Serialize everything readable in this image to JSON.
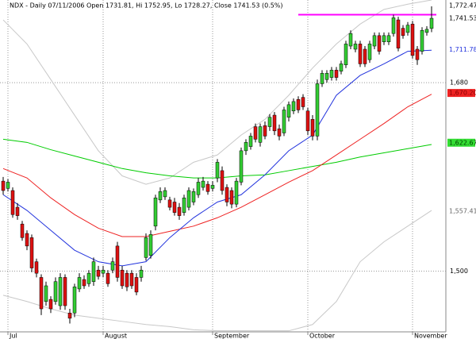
{
  "chart_data": {
    "type": "candlestick",
    "title": "NDX - Daily 07/11/2006 Open 1731.81, Hi 1752.95, Lo 1728.27, Close 1741.53 (0.5%)",
    "categories": [
      null,
      "Jul",
      null,
      null,
      null,
      null,
      null,
      null,
      null,
      null,
      null,
      null,
      null,
      null,
      null,
      null,
      null,
      null,
      null,
      null,
      null,
      "August",
      null,
      null,
      null,
      null,
      null,
      null,
      null,
      null,
      null,
      null,
      null,
      null,
      null,
      null,
      null,
      null,
      null,
      null,
      null,
      null,
      null,
      null,
      "September",
      null,
      null,
      null,
      null,
      null,
      null,
      null,
      null,
      null,
      null,
      null,
      null,
      null,
      null,
      null,
      null,
      null,
      null,
      null,
      "October",
      null,
      null,
      null,
      null,
      null,
      null,
      null,
      null,
      null,
      null,
      null,
      null,
      null,
      null,
      null,
      null,
      null,
      null,
      null,
      null,
      null,
      "November",
      null,
      null,
      null,
      null
    ],
    "open": [
      1586,
      1579,
      1577,
      1561,
      1545,
      1536,
      1532,
      1509,
      1494,
      1471,
      1473,
      1471,
      1467,
      1494,
      1460,
      1460,
      1483,
      1492,
      1488,
      1490,
      1501,
      1498,
      1498,
      1501,
      1524,
      1501,
      1498,
      1498,
      1494,
      1494,
      1513,
      1515,
      1543,
      1568,
      1571,
      1568,
      1566,
      1561,
      1556,
      1561,
      1566,
      1573,
      1580,
      1583,
      1579,
      1589,
      1596,
      1580,
      1577,
      1564,
      1585,
      1615,
      1619,
      1638,
      1623,
      1639,
      1638,
      1649,
      1636,
      1632,
      1647,
      1653,
      1664,
      1666,
      1653,
      1645,
      1629,
      1679,
      1683,
      1685,
      1692,
      1691,
      1697,
      1715,
      1712,
      1717,
      1712,
      1702,
      1715,
      1725,
      1719,
      1719,
      1727,
      1740,
      1732,
      1728,
      1736,
      1712,
      1710,
      1728,
      1731.81
    ],
    "high": [
      1590,
      1588,
      1580,
      1565,
      1548,
      1539,
      1535,
      1512,
      1497,
      1490,
      1476,
      1494,
      1498,
      1497,
      1464,
      1488,
      1498,
      1496,
      1501,
      1513,
      1505,
      1505,
      1501,
      1513,
      1528,
      1505,
      1501,
      1501,
      1498,
      1505,
      1536,
      1539,
      1573,
      1580,
      1580,
      1571,
      1570,
      1565,
      1573,
      1580,
      1579,
      1589,
      1590,
      1586,
      1586,
      1607,
      1600,
      1583,
      1580,
      1589,
      1618,
      1626,
      1632,
      1641,
      1641,
      1643,
      1650,
      1652,
      1640,
      1657,
      1662,
      1665,
      1667,
      1669,
      1656,
      1649,
      1683,
      1692,
      1692,
      1695,
      1695,
      1701,
      1720,
      1730,
      1720,
      1720,
      1715,
      1720,
      1728,
      1728,
      1728,
      1728,
      1745,
      1743,
      1735,
      1738,
      1739,
      1715,
      1733,
      1734,
      1752.95
    ],
    "low": [
      1573,
      1576,
      1551,
      1549,
      1529,
      1520,
      1499,
      1494,
      1458,
      1467,
      1460,
      1468,
      1463,
      1463,
      1450,
      1456,
      1480,
      1483,
      1485,
      1486,
      1492,
      1494,
      1485,
      1498,
      1490,
      1483,
      1481,
      1483,
      1477,
      1490,
      1510,
      1512,
      1539,
      1565,
      1568,
      1558,
      1553,
      1549,
      1553,
      1558,
      1563,
      1570,
      1577,
      1573,
      1576,
      1585,
      1573,
      1562,
      1560,
      1561,
      1582,
      1611,
      1616,
      1623,
      1619,
      1626,
      1634,
      1630,
      1625,
      1629,
      1643,
      1650,
      1651,
      1654,
      1630,
      1625,
      1625,
      1676,
      1680,
      1682,
      1682,
      1688,
      1694,
      1712,
      1709,
      1695,
      1695,
      1699,
      1712,
      1707,
      1716,
      1716,
      1724,
      1710,
      1722,
      1725,
      1703,
      1697,
      1707,
      1725,
      1728.27
    ],
    "close": [
      1577,
      1585,
      1554,
      1553,
      1532,
      1524,
      1503,
      1498,
      1464,
      1486,
      1464,
      1490,
      1494,
      1467,
      1455,
      1485,
      1494,
      1486,
      1498,
      1509,
      1495,
      1501,
      1488,
      1509,
      1494,
      1486,
      1485,
      1486,
      1480,
      1501,
      1532,
      1535,
      1570,
      1576,
      1577,
      1561,
      1556,
      1553,
      1570,
      1577,
      1576,
      1585,
      1586,
      1576,
      1582,
      1604,
      1577,
      1566,
      1564,
      1586,
      1615,
      1623,
      1629,
      1626,
      1638,
      1629,
      1647,
      1634,
      1629,
      1654,
      1659,
      1662,
      1654,
      1657,
      1634,
      1629,
      1679,
      1689,
      1689,
      1692,
      1685,
      1698,
      1717,
      1727,
      1717,
      1698,
      1698,
      1717,
      1725,
      1710,
      1725,
      1725,
      1742,
      1713,
      1725,
      1735,
      1706,
      1702,
      1730,
      1731,
      1741.53
    ],
    "up_color": "#33cc33",
    "down_color": "#dd1111",
    "lines": [
      {
        "color": "#c8c8c8",
        "x": [
          0,
          5,
          10,
          15,
          20,
          25,
          30,
          35,
          40,
          45,
          50,
          55,
          60,
          65,
          70,
          75,
          80,
          85,
          90
        ],
        "values": [
          1740,
          1717,
          1683,
          1649,
          1615,
          1591,
          1583,
          1589,
          1604,
          1611,
          1630,
          1645,
          1668,
          1694,
          1717,
          1736,
          1750,
          1755,
          1759
        ]
      },
      {
        "color": "#c8c8c8",
        "x": [
          0,
          5,
          10,
          15,
          20,
          25,
          30,
          35,
          40,
          45,
          50,
          55,
          60,
          65,
          70,
          75,
          80,
          85,
          90
        ],
        "values": [
          1477,
          1471,
          1464,
          1458,
          1455,
          1452,
          1449,
          1447,
          1444,
          1443,
          1443,
          1443,
          1443,
          1449,
          1471,
          1509,
          1528,
          1543,
          1558
        ]
      },
      {
        "color": "#00cc00",
        "x": [
          0,
          5,
          10,
          15,
          20,
          25,
          30,
          35,
          40,
          45,
          50,
          55,
          60,
          65,
          70,
          75,
          80,
          85,
          90
        ],
        "values": [
          1626,
          1623,
          1616,
          1610,
          1604,
          1598,
          1594,
          1591,
          1589,
          1589,
          1591,
          1592,
          1596,
          1600,
          1604,
          1609,
          1613,
          1617,
          1621
        ]
      },
      {
        "color": "#ee2222",
        "x": [
          0,
          5,
          10,
          15,
          20,
          25,
          30,
          35,
          40,
          45,
          50,
          55,
          60,
          65,
          70,
          75,
          80,
          85,
          90
        ],
        "values": [
          1598,
          1589,
          1570,
          1554,
          1541,
          1533,
          1533,
          1538,
          1543,
          1551,
          1561,
          1573,
          1585,
          1596,
          1611,
          1626,
          1641,
          1657,
          1669
        ]
      },
      {
        "color": "#2233dd",
        "x": [
          0,
          5,
          10,
          15,
          20,
          25,
          30,
          35,
          40,
          45,
          50,
          55,
          60,
          65,
          70,
          75,
          80,
          85,
          90
        ],
        "values": [
          1573,
          1558,
          1539,
          1520,
          1509,
          1505,
          1509,
          1532,
          1551,
          1566,
          1573,
          1592,
          1615,
          1630,
          1668,
          1687,
          1698,
          1710,
          1711
        ]
      }
    ],
    "hline": {
      "value": 1745,
      "color": "#ff00ff",
      "x": [
        62,
        91
      ]
    },
    "ylim": [
      1442,
      1759
    ],
    "yticks": [
      {
        "value": 1500,
        "label": "1,500"
      },
      {
        "value": 1680,
        "label": "1,680"
      }
    ],
    "price_labels": [
      {
        "value": 1772.47,
        "label": "1,772.47",
        "color": "#000000",
        "fill": "#ffffff"
      },
      {
        "value": 1741.53,
        "label": "1,741.53",
        "color": "#000000",
        "fill": "#ffffff"
      },
      {
        "value": 1711.78,
        "label": "1,711.78",
        "color": "#2233dd",
        "fill": "#ffffff"
      },
      {
        "value": 1670.2,
        "label": "1,670.20",
        "color": "#880000",
        "fill": "#ee2222"
      },
      {
        "value": 1622.67,
        "label": "1,622.67",
        "color": "#004400",
        "fill": "#33dd33"
      },
      {
        "value": 1557.41,
        "label": "1,557.41",
        "color": "#666666",
        "fill": "#ffffff"
      }
    ],
    "grid": true
  }
}
